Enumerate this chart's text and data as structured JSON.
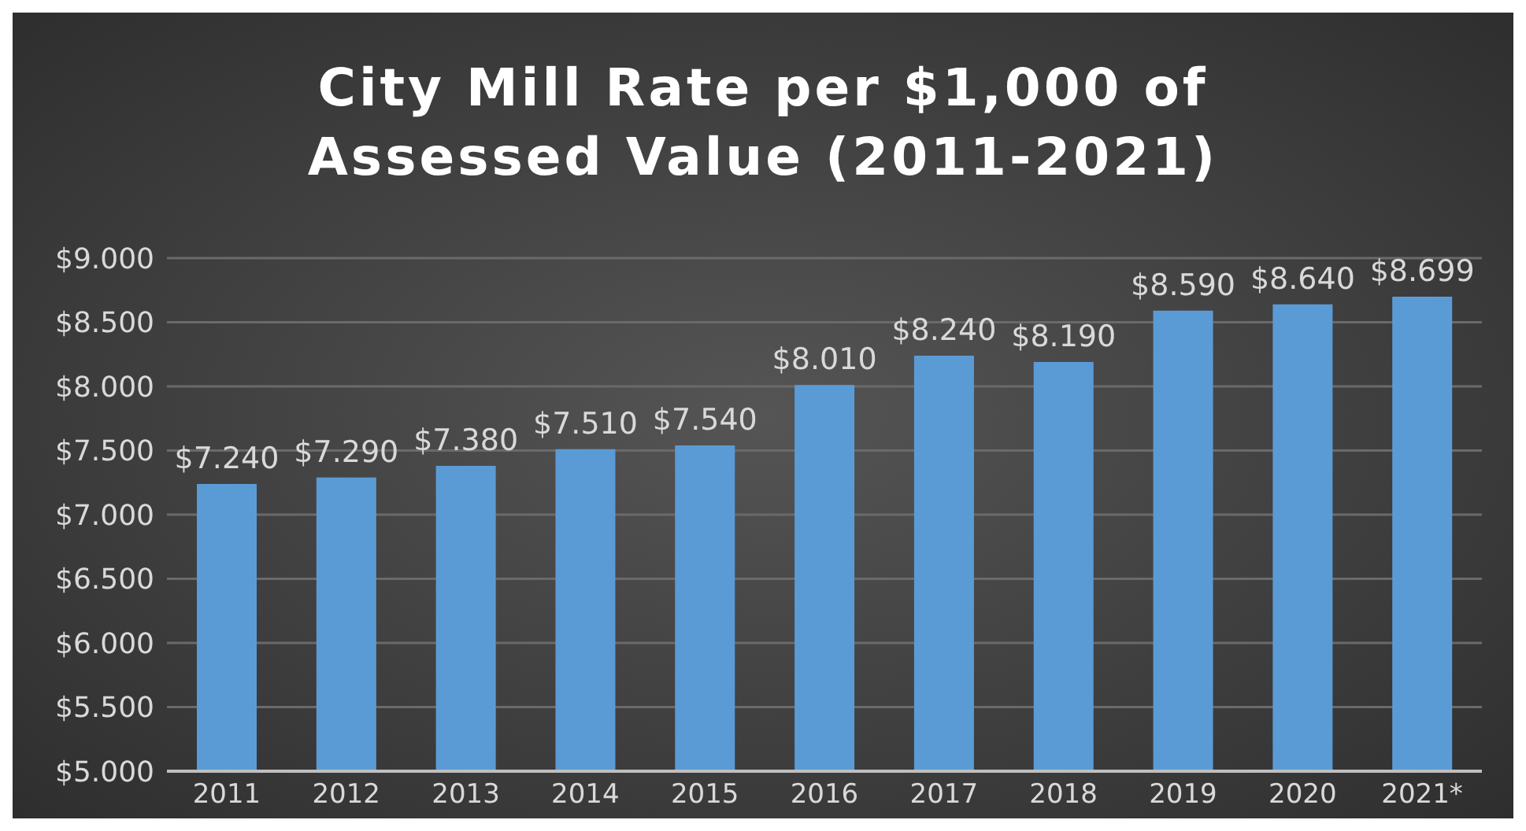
{
  "chart_data": {
    "type": "bar",
    "title": "City Mill Rate per $1,000 of Assessed Value (2011-2021)",
    "categories": [
      "2011",
      "2012",
      "2013",
      "2014",
      "2015",
      "2016",
      "2017",
      "2018",
      "2019",
      "2020",
      "2021*"
    ],
    "values": [
      7.24,
      7.29,
      7.38,
      7.51,
      7.54,
      8.01,
      8.24,
      8.19,
      8.59,
      8.64,
      8.699
    ],
    "value_labels": [
      "$7.240",
      "$7.290",
      "$7.380",
      "$7.510",
      "$7.540",
      "$8.010",
      "$8.240",
      "$8.190",
      "$8.590",
      "$8.640",
      "$8.699"
    ],
    "color": "#5b9bd5",
    "ylim": [
      5,
      9
    ],
    "yticks": [
      {
        "value": 5,
        "label": "$5.000"
      },
      {
        "value": 5.5,
        "label": "$5.500"
      },
      {
        "value": 6,
        "label": "$6.000"
      },
      {
        "value": 6.5,
        "label": "$6.500"
      },
      {
        "value": 7,
        "label": "$7.000"
      },
      {
        "value": 7.5,
        "label": "$7.500"
      },
      {
        "value": 8,
        "label": "$8.000"
      },
      {
        "value": 8.5,
        "label": "$8.500"
      },
      {
        "value": 9,
        "label": "$9.000"
      }
    ],
    "grid": "y"
  }
}
